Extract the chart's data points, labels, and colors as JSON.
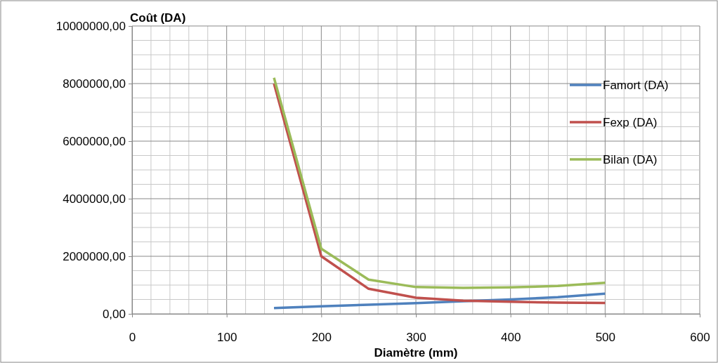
{
  "chart_data": {
    "type": "line",
    "xlabel": "Diamètre (mm)",
    "ylabel": "Coût (DA)",
    "x": [
      150,
      200,
      250,
      300,
      350,
      400,
      450,
      500
    ],
    "series": [
      {
        "name": "Famort (DA)",
        "color": "#4f81bd",
        "values": [
          200000,
          260000,
          320000,
          370000,
          440000,
          500000,
          580000,
          700000
        ]
      },
      {
        "name": "Fexp (DA)",
        "color": "#c0504d",
        "values": [
          8000000,
          2000000,
          870000,
          560000,
          460000,
          420000,
          390000,
          380000
        ]
      },
      {
        "name": "Bilan (DA)",
        "color": "#9bbb59",
        "values": [
          8200000,
          2260000,
          1190000,
          930000,
          900000,
          920000,
          970000,
          1080000
        ]
      }
    ],
    "xlim": [
      0,
      600
    ],
    "xticks": [
      0,
      100,
      200,
      300,
      400,
      500,
      600
    ],
    "ylim": [
      0,
      10000000
    ],
    "yticks": [
      {
        "value": 0,
        "label": "0,00"
      },
      {
        "value": 2000000,
        "label": "2000000,00"
      },
      {
        "value": 4000000,
        "label": "4000000,00"
      },
      {
        "value": 6000000,
        "label": "6000000,00"
      },
      {
        "value": 8000000,
        "label": "8000000,00"
      },
      {
        "value": 10000000,
        "label": "10000000,00"
      }
    ],
    "grid": true,
    "legend": "right",
    "marker": "none",
    "line_style": "solid"
  }
}
